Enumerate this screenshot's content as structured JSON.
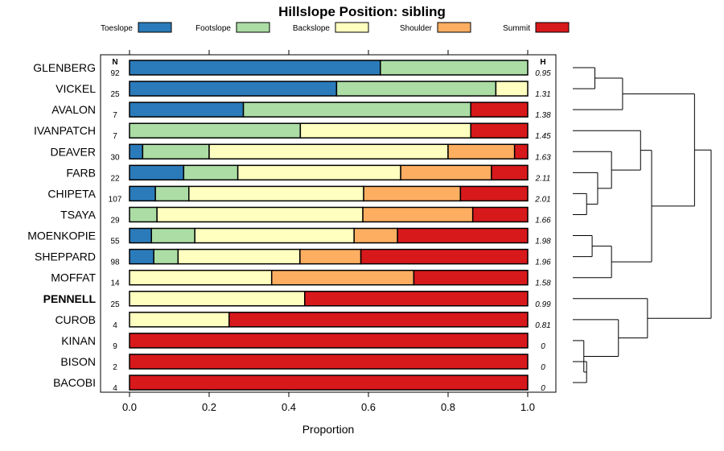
{
  "chart_data": {
    "type": "bar",
    "orientation": "horizontal",
    "stacked": true,
    "title": "Hillslope Position: sibling",
    "xlabel": "Proportion",
    "ylabel": "",
    "xlim": [
      0,
      1
    ],
    "xticks": [
      0,
      0.2,
      0.4,
      0.6,
      0.8,
      1
    ],
    "xtick_labels": [
      "0.0",
      "0.2",
      "0.4",
      "0.6",
      "0.8",
      "1.0"
    ],
    "n_header": "N",
    "h_header": "H",
    "legend_position": "top",
    "legend": [
      {
        "name": "Toeslope",
        "color": "#2b7bba"
      },
      {
        "name": "Footslope",
        "color": "#abdda4"
      },
      {
        "name": "Backslope",
        "color": "#ffffbf"
      },
      {
        "name": "Shoulder",
        "color": "#fdae61"
      },
      {
        "name": "Summit",
        "color": "#d7191c"
      }
    ],
    "categories": [
      "GLENBERG",
      "VICKEL",
      "AVALON",
      "IVANPATCH",
      "DEAVER",
      "FARB",
      "CHIPETA",
      "TSAYA",
      "MOENKOPIE",
      "SHEPPARD",
      "MOFFAT",
      "PENNELL",
      "CUROB",
      "KINAN",
      "BISON",
      "BACOBI"
    ],
    "highlight": "PENNELL",
    "n": [
      "92",
      "25",
      "7",
      "7",
      "30",
      "22",
      "107",
      "29",
      "55",
      "98",
      "14",
      "25",
      "4",
      "9",
      "2",
      "4"
    ],
    "H": [
      "0.95",
      "1.31",
      "1.38",
      "1.45",
      "1.63",
      "2.11",
      "2.01",
      "1.66",
      "1.98",
      "1.96",
      "1.58",
      "0.99",
      "0.81",
      "0",
      "0",
      "0"
    ],
    "series": [
      {
        "name": "Toeslope",
        "values": [
          0.63,
          0.52,
          0.286,
          0,
          0.033,
          0.136,
          0.065,
          0,
          0.055,
          0.061,
          0,
          0,
          0,
          0,
          0,
          0
        ]
      },
      {
        "name": "Footslope",
        "values": [
          0.37,
          0.4,
          0.571,
          0.429,
          0.167,
          0.136,
          0.084,
          0.069,
          0.109,
          0.061,
          0,
          0,
          0,
          0,
          0,
          0
        ]
      },
      {
        "name": "Backslope",
        "values": [
          0,
          0.08,
          0,
          0.428,
          0.6,
          0.409,
          0.439,
          0.517,
          0.4,
          0.306,
          0.357,
          0.44,
          0.25,
          0,
          0,
          0
        ]
      },
      {
        "name": "Shoulder",
        "values": [
          0,
          0,
          0,
          0,
          0.167,
          0.228,
          0.243,
          0.276,
          0.109,
          0.153,
          0.357,
          0,
          0,
          0,
          0,
          0
        ]
      },
      {
        "name": "Summit",
        "values": [
          0,
          0,
          0.143,
          0.143,
          0.033,
          0.091,
          0.169,
          0.138,
          0.327,
          0.419,
          0.286,
          0.56,
          0.75,
          1,
          1,
          1
        ]
      }
    ],
    "dendrogram": {
      "groups": [
        {
          "members": [
            "GLENBERG",
            "VICKEL"
          ],
          "height": 0.16
        },
        {
          "members": [
            "GLENBERG",
            "VICKEL",
            "AVALON"
          ],
          "height": 0.36
        },
        {
          "members": [
            "CHIPETA",
            "TSAYA"
          ],
          "height": 0.1
        },
        {
          "members": [
            "FARB",
            "CHIPETA",
            "TSAYA"
          ],
          "height": 0.18
        },
        {
          "members": [
            "DEAVER",
            "FARB",
            "CHIPETA",
            "TSAYA"
          ],
          "height": 0.28
        },
        {
          "members": [
            "IVANPATCH",
            "DEAVER",
            "FARB",
            "CHIPETA",
            "TSAYA"
          ],
          "height": 0.49
        },
        {
          "members": [
            "MOENKOPIE",
            "SHEPPARD"
          ],
          "height": 0.14
        },
        {
          "members": [
            "MOENKOPIE",
            "SHEPPARD",
            "MOFFAT"
          ],
          "height": 0.28
        },
        {
          "members": [
            "IVANPATCH",
            "DEAVER",
            "FARB",
            "CHIPETA",
            "TSAYA",
            "MOENKOPIE",
            "SHEPPARD",
            "MOFFAT"
          ],
          "height": 0.57
        },
        {
          "members": [
            "AVALON-CLUSTER",
            "IVANPATCH-CLUSTER"
          ],
          "height": 1.0
        },
        {
          "members": [
            "KINAN",
            "BISON",
            "BACOBI"
          ],
          "height": 0.1
        },
        {
          "members": [
            "CUROB",
            "KINAN",
            "BISON",
            "BACOBI"
          ],
          "height": 0.33
        },
        {
          "members": [
            "PENNELL",
            "CUROB",
            "KINAN",
            "BISON",
            "BACOBI"
          ],
          "height": 0.54
        },
        {
          "members": [
            "ALL"
          ],
          "height": 1.0
        }
      ]
    }
  }
}
